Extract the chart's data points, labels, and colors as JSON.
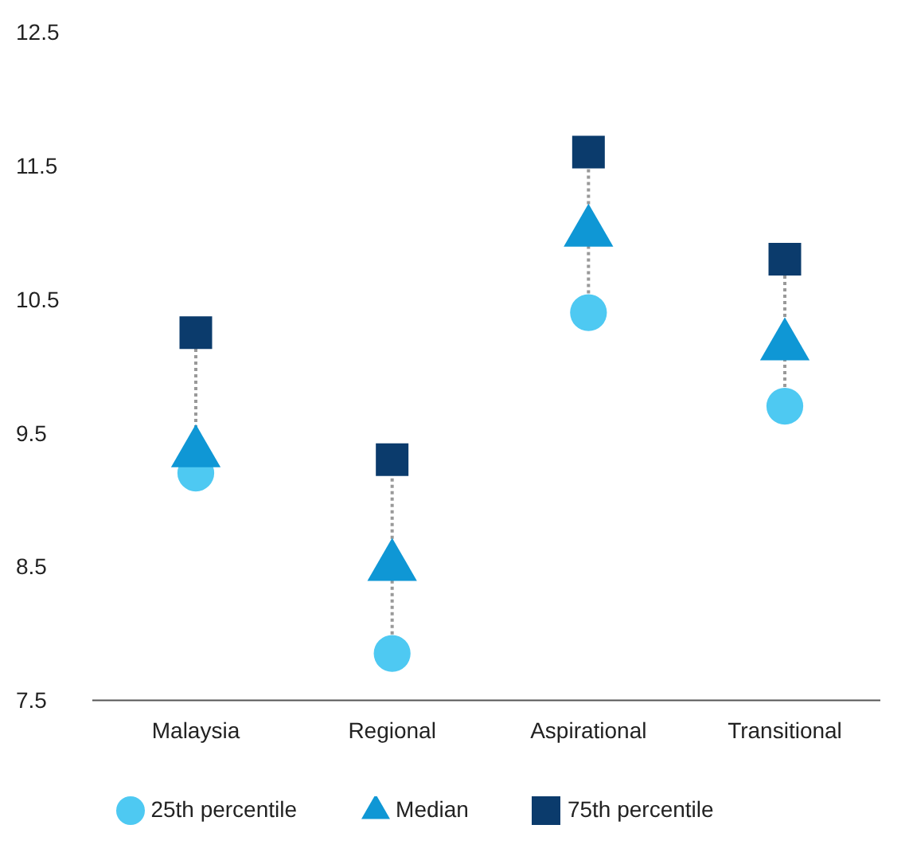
{
  "chart_data": {
    "type": "scatter",
    "categories": [
      "Malaysia",
      "Regional",
      "Aspirational",
      "Transitional"
    ],
    "series": [
      {
        "name": "25th percentile",
        "color": "#4ec9f2",
        "marker": "circle",
        "values": [
          9.2,
          7.85,
          10.4,
          9.7
        ]
      },
      {
        "name": "Median",
        "color": "#0f97d5",
        "marker": "triangle",
        "values": [
          9.35,
          8.5,
          11.0,
          10.15
        ]
      },
      {
        "name": "75th percentile",
        "color": "#0b3b6c",
        "marker": "square",
        "values": [
          10.25,
          9.3,
          11.6,
          10.8
        ]
      }
    ],
    "ylim": [
      7.5,
      12.5
    ],
    "yticks": [
      7.5,
      8.5,
      9.5,
      10.5,
      11.5,
      12.5
    ],
    "grid": false,
    "legend": "bottom"
  }
}
